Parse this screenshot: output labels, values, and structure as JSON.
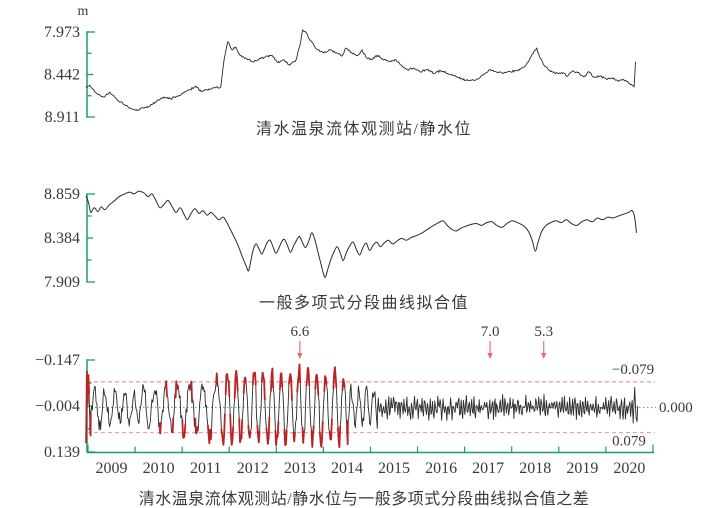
{
  "panels": [
    {
      "title": "清水温泉流体观测站/静水位",
      "unit": "m",
      "y_tick_labels": [
        "7.973",
        "8.442",
        "8.911"
      ]
    },
    {
      "title": "一般多项式分段曲线拟合值",
      "y_tick_labels": [
        "8.859",
        "8.384",
        "7.909"
      ]
    },
    {
      "title": "清水温泉流体观测站/静水位与一般多项式分段曲线拟合值之差",
      "y_tick_labels": [
        "−0.147",
        "−0.004",
        "0.139"
      ],
      "right_labels": [
        "−0.079",
        "0.000",
        "0.079"
      ],
      "x_tick_labels": [
        "2009",
        "2010",
        "2011",
        "2012",
        "2013",
        "2014",
        "2015",
        "2016",
        "2017",
        "2018",
        "2019",
        "2020"
      ]
    }
  ],
  "colors": {
    "axis": "#18a05c",
    "line": "#2b2b2b",
    "threshold_line": "#e08585",
    "zero_line": "#2aa05a",
    "exceed": "#bb2224",
    "arrow": "#e06a6a",
    "text": "#3a3a3a"
  },
  "chart_data": [
    {
      "type": "line",
      "name": "observed-static-water-level",
      "title": "清水温泉流体观测站/静水位",
      "ylabel": "m",
      "y_ticks": [
        7.973,
        8.442,
        8.911
      ],
      "y_axis_inverted": true,
      "x_range": [
        2008.96,
        2020.65
      ],
      "noise_amp": 0.011,
      "points": [
        [
          2008.96,
          8.59
        ],
        [
          2009.04,
          8.56
        ],
        [
          2009.15,
          8.64
        ],
        [
          2009.32,
          8.69
        ],
        [
          2009.47,
          8.64
        ],
        [
          2009.64,
          8.73
        ],
        [
          2009.85,
          8.8
        ],
        [
          2010.02,
          8.84
        ],
        [
          2010.17,
          8.81
        ],
        [
          2010.32,
          8.79
        ],
        [
          2010.49,
          8.72
        ],
        [
          2010.61,
          8.69
        ],
        [
          2010.76,
          8.71
        ],
        [
          2010.95,
          8.67
        ],
        [
          2011.17,
          8.61
        ],
        [
          2011.29,
          8.57
        ],
        [
          2011.4,
          8.63
        ],
        [
          2011.53,
          8.61
        ],
        [
          2011.68,
          8.59
        ],
        [
          2011.82,
          8.58
        ],
        [
          2011.89,
          8.28
        ],
        [
          2011.97,
          8.08
        ],
        [
          2012.06,
          8.17
        ],
        [
          2012.14,
          8.14
        ],
        [
          2012.23,
          8.23
        ],
        [
          2012.35,
          8.26
        ],
        [
          2012.48,
          8.3
        ],
        [
          2012.61,
          8.28
        ],
        [
          2012.76,
          8.25
        ],
        [
          2012.91,
          8.23
        ],
        [
          2013.03,
          8.31
        ],
        [
          2013.16,
          8.28
        ],
        [
          2013.29,
          8.34
        ],
        [
          2013.42,
          8.28
        ],
        [
          2013.5,
          8.12
        ],
        [
          2013.56,
          7.95
        ],
        [
          2013.63,
          7.98
        ],
        [
          2013.71,
          8.06
        ],
        [
          2013.8,
          8.12
        ],
        [
          2013.88,
          8.17
        ],
        [
          2014.01,
          8.2
        ],
        [
          2014.14,
          8.17
        ],
        [
          2014.27,
          8.2
        ],
        [
          2014.39,
          8.24
        ],
        [
          2014.48,
          8.15
        ],
        [
          2014.6,
          8.2
        ],
        [
          2014.73,
          8.23
        ],
        [
          2014.82,
          8.17
        ],
        [
          2014.92,
          8.26
        ],
        [
          2015.03,
          8.28
        ],
        [
          2015.14,
          8.23
        ],
        [
          2015.26,
          8.27
        ],
        [
          2015.41,
          8.3
        ],
        [
          2015.54,
          8.28
        ],
        [
          2015.67,
          8.35
        ],
        [
          2015.79,
          8.39
        ],
        [
          2015.92,
          8.37
        ],
        [
          2016.05,
          8.41
        ],
        [
          2016.2,
          8.39
        ],
        [
          2016.35,
          8.43
        ],
        [
          2016.49,
          8.4
        ],
        [
          2016.64,
          8.43
        ],
        [
          2016.79,
          8.46
        ],
        [
          2016.94,
          8.49
        ],
        [
          2017.09,
          8.51
        ],
        [
          2017.24,
          8.5
        ],
        [
          2017.39,
          8.45
        ],
        [
          2017.53,
          8.39
        ],
        [
          2017.66,
          8.41
        ],
        [
          2017.81,
          8.43
        ],
        [
          2017.96,
          8.41
        ],
        [
          2018.11,
          8.4
        ],
        [
          2018.26,
          8.36
        ],
        [
          2018.36,
          8.3
        ],
        [
          2018.47,
          8.19
        ],
        [
          2018.53,
          8.15
        ],
        [
          2018.6,
          8.26
        ],
        [
          2018.7,
          8.35
        ],
        [
          2018.81,
          8.4
        ],
        [
          2018.94,
          8.43
        ],
        [
          2019.06,
          8.42
        ],
        [
          2019.19,
          8.46
        ],
        [
          2019.3,
          8.4
        ],
        [
          2019.4,
          8.42
        ],
        [
          2019.53,
          8.47
        ],
        [
          2019.64,
          8.41
        ],
        [
          2019.74,
          8.47
        ],
        [
          2019.87,
          8.46
        ],
        [
          2020.0,
          8.49
        ],
        [
          2020.13,
          8.48
        ],
        [
          2020.25,
          8.51
        ],
        [
          2020.38,
          8.5
        ],
        [
          2020.48,
          8.53
        ],
        [
          2020.56,
          8.56
        ],
        [
          2020.6,
          8.58
        ],
        [
          2020.63,
          8.3
        ]
      ]
    },
    {
      "type": "line",
      "name": "polynomial-piecewise-fit",
      "title": "一般多项式分段曲线拟合值",
      "y_ticks": [
        8.859,
        8.384,
        7.909
      ],
      "y_axis_inverted": false,
      "x_range": [
        2008.96,
        2020.65
      ],
      "noise_amp": 0,
      "points": [
        [
          2008.96,
          8.84
        ],
        [
          2009.02,
          8.75
        ],
        [
          2009.06,
          8.66
        ],
        [
          2009.13,
          8.71
        ],
        [
          2009.21,
          8.67
        ],
        [
          2009.28,
          8.72
        ],
        [
          2009.36,
          8.69
        ],
        [
          2009.45,
          8.74
        ],
        [
          2009.55,
          8.78
        ],
        [
          2009.66,
          8.83
        ],
        [
          2009.78,
          8.86
        ],
        [
          2009.89,
          8.88
        ],
        [
          2009.98,
          8.86
        ],
        [
          2010.08,
          8.89
        ],
        [
          2010.19,
          8.87
        ],
        [
          2010.28,
          8.83
        ],
        [
          2010.36,
          8.86
        ],
        [
          2010.45,
          8.78
        ],
        [
          2010.53,
          8.71
        ],
        [
          2010.62,
          8.75
        ],
        [
          2010.7,
          8.79
        ],
        [
          2010.79,
          8.72
        ],
        [
          2010.87,
          8.66
        ],
        [
          2010.96,
          8.71
        ],
        [
          2011.04,
          8.64
        ],
        [
          2011.11,
          8.58
        ],
        [
          2011.19,
          8.65
        ],
        [
          2011.27,
          8.7
        ],
        [
          2011.36,
          8.65
        ],
        [
          2011.44,
          8.68
        ],
        [
          2011.53,
          8.63
        ],
        [
          2011.61,
          8.66
        ],
        [
          2011.7,
          8.62
        ],
        [
          2011.78,
          8.58
        ],
        [
          2011.87,
          8.61
        ],
        [
          2011.95,
          8.55
        ],
        [
          2012.02,
          8.48
        ],
        [
          2012.1,
          8.4
        ],
        [
          2012.19,
          8.3
        ],
        [
          2012.28,
          8.18
        ],
        [
          2012.36,
          8.08
        ],
        [
          2012.41,
          8.03
        ],
        [
          2012.46,
          8.14
        ],
        [
          2012.51,
          8.26
        ],
        [
          2012.57,
          8.32
        ],
        [
          2012.63,
          8.27
        ],
        [
          2012.69,
          8.21
        ],
        [
          2012.75,
          8.27
        ],
        [
          2012.81,
          8.34
        ],
        [
          2012.87,
          8.36
        ],
        [
          2012.93,
          8.29
        ],
        [
          2012.99,
          8.22
        ],
        [
          2013.05,
          8.27
        ],
        [
          2013.11,
          8.34
        ],
        [
          2013.17,
          8.37
        ],
        [
          2013.24,
          8.3
        ],
        [
          2013.3,
          8.23
        ],
        [
          2013.36,
          8.29
        ],
        [
          2013.43,
          8.36
        ],
        [
          2013.49,
          8.4
        ],
        [
          2013.56,
          8.33
        ],
        [
          2013.62,
          8.28
        ],
        [
          2013.69,
          8.35
        ],
        [
          2013.75,
          8.44
        ],
        [
          2013.81,
          8.38
        ],
        [
          2013.87,
          8.26
        ],
        [
          2013.94,
          8.12
        ],
        [
          2014.0,
          8.0
        ],
        [
          2014.04,
          7.96
        ],
        [
          2014.09,
          8.04
        ],
        [
          2014.15,
          8.14
        ],
        [
          2014.22,
          8.23
        ],
        [
          2014.29,
          8.29
        ],
        [
          2014.36,
          8.22
        ],
        [
          2014.42,
          8.14
        ],
        [
          2014.49,
          8.23
        ],
        [
          2014.56,
          8.3
        ],
        [
          2014.63,
          8.34
        ],
        [
          2014.7,
          8.26
        ],
        [
          2014.77,
          8.2
        ],
        [
          2014.84,
          8.28
        ],
        [
          2014.91,
          8.33
        ],
        [
          2014.98,
          8.25
        ],
        [
          2015.05,
          8.3
        ],
        [
          2015.13,
          8.34
        ],
        [
          2015.21,
          8.29
        ],
        [
          2015.29,
          8.33
        ],
        [
          2015.38,
          8.36
        ],
        [
          2015.47,
          8.32
        ],
        [
          2015.56,
          8.35
        ],
        [
          2015.66,
          8.38
        ],
        [
          2015.76,
          8.36
        ],
        [
          2015.87,
          8.39
        ],
        [
          2015.98,
          8.41
        ],
        [
          2016.1,
          8.44
        ],
        [
          2016.22,
          8.48
        ],
        [
          2016.34,
          8.52
        ],
        [
          2016.45,
          8.55
        ],
        [
          2016.54,
          8.57
        ],
        [
          2016.63,
          8.52
        ],
        [
          2016.72,
          8.48
        ],
        [
          2016.82,
          8.46
        ],
        [
          2016.92,
          8.49
        ],
        [
          2017.02,
          8.51
        ],
        [
          2017.13,
          8.53
        ],
        [
          2017.25,
          8.54
        ],
        [
          2017.36,
          8.52
        ],
        [
          2017.47,
          8.55
        ],
        [
          2017.58,
          8.56
        ],
        [
          2017.68,
          8.52
        ],
        [
          2017.79,
          8.5
        ],
        [
          2017.9,
          8.54
        ],
        [
          2018.01,
          8.57
        ],
        [
          2018.12,
          8.55
        ],
        [
          2018.24,
          8.52
        ],
        [
          2018.35,
          8.46
        ],
        [
          2018.44,
          8.35
        ],
        [
          2018.5,
          8.24
        ],
        [
          2018.56,
          8.34
        ],
        [
          2018.64,
          8.46
        ],
        [
          2018.73,
          8.52
        ],
        [
          2018.83,
          8.55
        ],
        [
          2018.94,
          8.57
        ],
        [
          2019.05,
          8.55
        ],
        [
          2019.16,
          8.58
        ],
        [
          2019.27,
          8.54
        ],
        [
          2019.38,
          8.52
        ],
        [
          2019.49,
          8.56
        ],
        [
          2019.6,
          8.58
        ],
        [
          2019.71,
          8.56
        ],
        [
          2019.82,
          8.6
        ],
        [
          2019.93,
          8.58
        ],
        [
          2020.04,
          8.61
        ],
        [
          2020.15,
          8.6
        ],
        [
          2020.26,
          8.62
        ],
        [
          2020.37,
          8.64
        ],
        [
          2020.48,
          8.66
        ],
        [
          2020.56,
          8.68
        ],
        [
          2020.61,
          8.61
        ],
        [
          2020.65,
          8.44
        ]
      ]
    },
    {
      "type": "line",
      "name": "residual-observed-minus-fit",
      "title": "清水温泉流体观测站/静水位与一般多项式分段曲线拟合值之差",
      "y_ticks": [
        -0.147,
        -0.004,
        0.139
      ],
      "y_axis_inverted": true,
      "thresholds": [
        -0.079,
        0.079
      ],
      "zero_level": 0.0,
      "x_range": [
        2008.96,
        2020.68
      ],
      "x_tick_values": [
        2009,
        2010,
        2011,
        2012,
        2013,
        2014,
        2015,
        2016,
        2017,
        2018,
        2019,
        2020,
        2021
      ],
      "annotations": [
        {
          "label": "6.6",
          "t": 2013.5
        },
        {
          "label": "7.0",
          "t": 2017.54
        },
        {
          "label": "5.3",
          "t": 2018.68
        }
      ],
      "synth": {
        "dt": 0.016,
        "seed": 97531,
        "segments": [
          {
            "t0": 2008.96,
            "t1": 2009.06,
            "amp": 0.095,
            "period": 0.085,
            "jitter": 0.35
          },
          {
            "t0": 2009.06,
            "t1": 2009.62,
            "amp": 0.055,
            "period": 0.22,
            "jitter": 0.45
          },
          {
            "t0": 2009.62,
            "t1": 2010.15,
            "amp": 0.04,
            "period": 0.2,
            "jitter": 0.55
          },
          {
            "t0": 2010.15,
            "t1": 2010.78,
            "amp": 0.06,
            "period": 0.24,
            "jitter": 0.4
          },
          {
            "t0": 2010.78,
            "t1": 2011.48,
            "amp": 0.075,
            "period": 0.27,
            "jitter": 0.35
          },
          {
            "t0": 2011.48,
            "t1": 2011.86,
            "amp": 0.088,
            "period": 0.3,
            "jitter": 0.3
          },
          {
            "t0": 2011.86,
            "t1": 2014.52,
            "amp": 0.104,
            "period": 0.19,
            "jitter": 0.22
          },
          {
            "t0": 2014.52,
            "t1": 2015.15,
            "amp": 0.052,
            "period": 0.16,
            "jitter": 0.45
          },
          {
            "t0": 2015.15,
            "t1": 2020.58,
            "amp": 0.021,
            "period": 0.055,
            "jitter": 0.95
          },
          {
            "t0": 2020.58,
            "t1": 2020.68,
            "amp": 0.045,
            "period": 0.08,
            "jitter": 0.5
          }
        ],
        "peaks": [
          {
            "t": 2013.5,
            "v": -0.135
          },
          {
            "t": 2008.97,
            "v": -0.112
          }
        ]
      }
    }
  ]
}
